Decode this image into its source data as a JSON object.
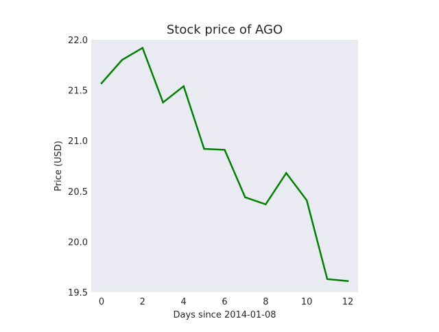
{
  "chart_data": {
    "type": "line",
    "title": "Stock price of AGO",
    "xlabel": "Days since 2014-01-08",
    "ylabel": "Price (USD)",
    "xlim": [
      -0.5,
      12.5
    ],
    "ylim": [
      19.5,
      22.0
    ],
    "xticks": [
      0,
      2,
      4,
      6,
      8,
      10,
      12
    ],
    "yticks": [
      19.5,
      20.0,
      20.5,
      21.0,
      21.5,
      22.0
    ],
    "xtick_labels": [
      "0",
      "2",
      "4",
      "6",
      "8",
      "10",
      "12"
    ],
    "ytick_labels": [
      "19.5",
      "20.0",
      "20.5",
      "21.0",
      "21.5",
      "22.0"
    ],
    "grid": false,
    "background_color": "#eaeaf2",
    "series": [
      {
        "color": "#008000",
        "x": [
          0,
          1,
          2,
          3,
          4,
          5,
          6,
          7,
          8,
          9,
          10,
          11,
          12
        ],
        "y": [
          21.57,
          21.8,
          21.92,
          21.38,
          21.54,
          20.92,
          20.91,
          20.44,
          20.37,
          20.68,
          20.41,
          19.63,
          19.61
        ]
      }
    ]
  }
}
